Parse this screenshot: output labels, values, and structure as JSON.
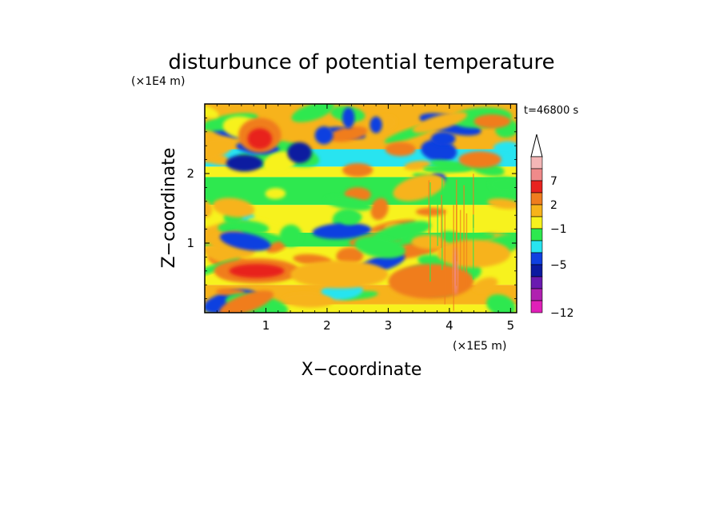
{
  "chart_data": {
    "type": "heatmap",
    "title": "disturbunce of potential temperature",
    "time_label": "t=46800 s",
    "xlabel": "X−coordinate",
    "ylabel": "Z−coordinate",
    "x_unit": "(×1E5 m)",
    "y_unit": "(×1E4 m)",
    "xlim": [
      0,
      5.1
    ],
    "ylim": [
      0,
      3.0
    ],
    "x_ticks": [
      {
        "value": 1,
        "label": "1"
      },
      {
        "value": 2,
        "label": "2"
      },
      {
        "value": 3,
        "label": "3"
      },
      {
        "value": 4,
        "label": "4"
      },
      {
        "value": 5,
        "label": "5"
      }
    ],
    "y_ticks": [
      {
        "value": 1,
        "label": "1"
      },
      {
        "value": 2,
        "label": "2"
      }
    ],
    "colorbar": {
      "levels": [
        {
          "color": "#f4b6b6"
        },
        {
          "color": "#f08a8a"
        },
        {
          "color": "#e8231f"
        },
        {
          "color": "#f07d1e"
        },
        {
          "color": "#f7b31b"
        },
        {
          "color": "#f7f21e"
        },
        {
          "color": "#2ee84f"
        },
        {
          "color": "#28e4f0"
        },
        {
          "color": "#1040e0"
        },
        {
          "color": "#0c1aa0"
        },
        {
          "color": "#6a1ab0"
        },
        {
          "color": "#b020b0"
        },
        {
          "color": "#e020b8"
        }
      ],
      "labels": [
        {
          "level_index": 2,
          "label": "7"
        },
        {
          "level_index": 4,
          "label": "2"
        },
        {
          "level_index": 6,
          "label": "−1"
        },
        {
          "level_index": 9,
          "label": "−5"
        },
        {
          "level_index": 13,
          "label": "−12"
        }
      ],
      "extend": "max"
    },
    "field_features": [
      {
        "x": 0.85,
        "z": 0.6,
        "value": 3,
        "w": 0.7,
        "h": 0.18
      },
      {
        "x": 0.85,
        "z": 0.6,
        "value": 5,
        "w": 0.45,
        "h": 0.1
      },
      {
        "x": 2.2,
        "z": 0.55,
        "value": 2,
        "w": 0.8,
        "h": 0.2
      },
      {
        "x": 3.7,
        "z": 0.45,
        "value": 3,
        "w": 0.7,
        "h": 0.25
      },
      {
        "x": 4.4,
        "z": 0.85,
        "value": 2,
        "w": 0.6,
        "h": 0.2
      },
      {
        "x": 0.9,
        "z": 2.55,
        "value": 3,
        "w": 0.35,
        "h": 0.25
      },
      {
        "x": 0.9,
        "z": 2.5,
        "value": 5,
        "w": 0.2,
        "h": 0.15
      },
      {
        "x": 0.65,
        "z": 2.15,
        "value": -5,
        "w": 0.3,
        "h": 0.12
      },
      {
        "x": 1.55,
        "z": 2.3,
        "value": -5,
        "w": 0.2,
        "h": 0.15
      },
      {
        "x": 1.95,
        "z": 2.55,
        "value": -3,
        "w": 0.15,
        "h": 0.13
      },
      {
        "x": 2.5,
        "z": 2.05,
        "value": 4,
        "w": 0.25,
        "h": 0.1
      },
      {
        "x": 3.2,
        "z": 2.35,
        "value": 3,
        "w": 0.25,
        "h": 0.1
      },
      {
        "x": 3.7,
        "z": 1.45,
        "value": 4,
        "w": 0.25,
        "h": 0.06
      },
      {
        "x": 3.9,
        "z": 2.5,
        "value": -4,
        "w": 0.2,
        "h": 0.1
      },
      {
        "x": 4.5,
        "z": 2.2,
        "value": 3,
        "w": 0.35,
        "h": 0.12
      },
      {
        "x": 2.35,
        "z": 2.8,
        "value": -4,
        "w": 0.1,
        "h": 0.15
      },
      {
        "x": 2.8,
        "z": 2.7,
        "value": -4,
        "w": 0.1,
        "h": 0.12
      },
      {
        "x": 4.7,
        "z": 2.75,
        "value": 3,
        "w": 0.3,
        "h": 0.1
      },
      {
        "x": 4.1,
        "z": 0.6,
        "value": 8,
        "w": 0.04,
        "h": 0.35
      }
    ]
  }
}
